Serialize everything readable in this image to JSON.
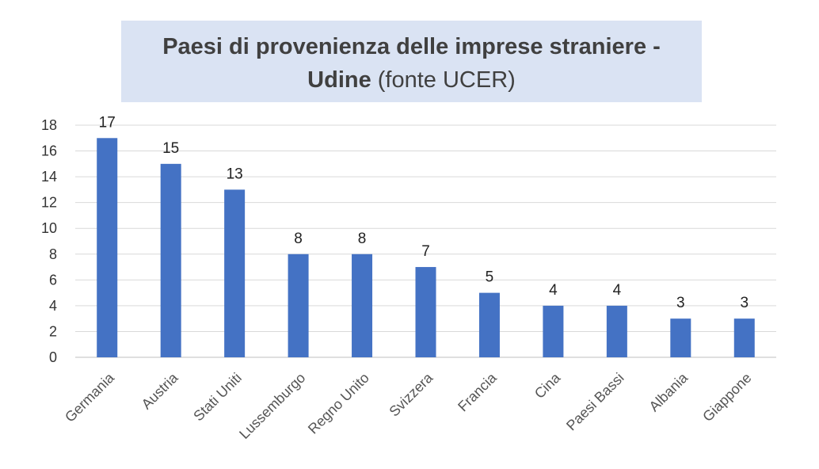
{
  "chart_data": {
    "type": "bar",
    "title": "Paesi di provenienza delle imprese straniere - Udine",
    "title_line1": "Paesi di provenienza delle imprese straniere -",
    "title_line2_bold": "Udine",
    "title_line2_rest": " (fonte UCER)",
    "categories": [
      "Germania",
      "Austria",
      "Stati Uniti",
      "Lussemburgo",
      "Regno Unito",
      "Svizzera",
      "Francia",
      "Cina",
      "Paesi Bassi",
      "Albania",
      "Giappone"
    ],
    "values": [
      17,
      15,
      13,
      8,
      8,
      7,
      5,
      4,
      4,
      3,
      3
    ],
    "yticks": [
      0,
      2,
      4,
      6,
      8,
      10,
      12,
      14,
      16,
      18
    ],
    "ylim": [
      0,
      18
    ],
    "xlabel": "",
    "ylabel": "",
    "grid": true,
    "legend": "none",
    "bar_color": "#4472c4",
    "title_bg": "#dae3f3"
  }
}
